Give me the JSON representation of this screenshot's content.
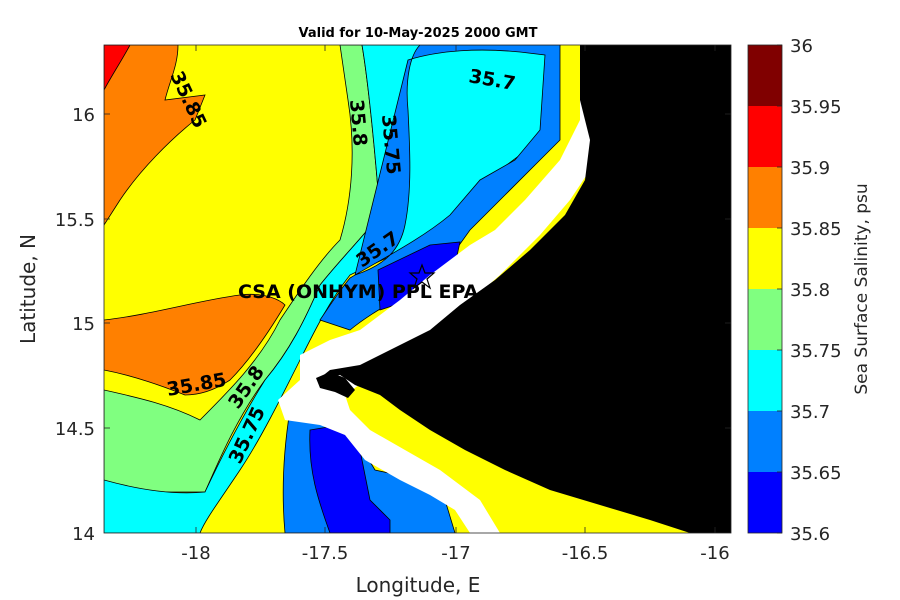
{
  "title": "Valid for 10-May-2025 2000 GMT",
  "x_axis": {
    "label": "Longitude, E",
    "ticks": [
      "-18",
      "-17.5",
      "-17",
      "-16.5",
      "-16"
    ]
  },
  "y_axis": {
    "label": "Latitude, N",
    "ticks": [
      "16",
      "15.5",
      "15",
      "14.5",
      "14"
    ]
  },
  "colorbar": {
    "label": "Sea Surface Salinity, psu",
    "ticks": [
      "36",
      "35.95",
      "35.9",
      "35.85",
      "35.8",
      "35.75",
      "35.7",
      "35.65",
      "35.6"
    ],
    "colors": [
      "#800000",
      "#ff0000",
      "#ff8000",
      "#ffff00",
      "#80ff80",
      "#00ffff",
      "#0080ff",
      "#0000ff"
    ]
  },
  "contour_labels": [
    "35.85",
    "35.8",
    "35.75",
    "35.7",
    "35.7",
    "35.85",
    "35.8",
    "35.75"
  ],
  "station": {
    "label": "CSA (ONHYM) PPL EPA",
    "marker": "star-icon"
  },
  "land_color": "#000000"
}
